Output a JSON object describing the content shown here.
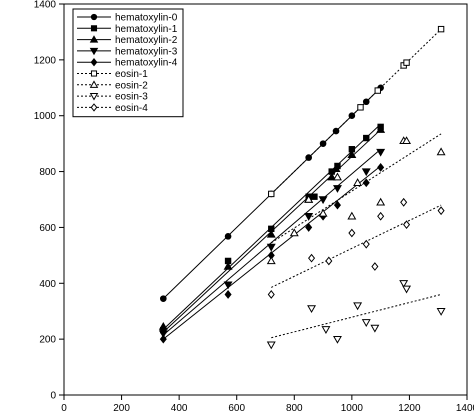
{
  "chart_data": {
    "type": "scatter",
    "title": "",
    "xlabel": "",
    "ylabel": "",
    "xlim": [
      0,
      1400
    ],
    "ylim": [
      0,
      1400
    ],
    "x_ticks": [
      "0",
      "200",
      "400",
      "600",
      "800",
      "1000",
      "1200",
      "1400"
    ],
    "y_ticks": [
      "0",
      "200",
      "400",
      "600",
      "800",
      "1000",
      "1200",
      "1400"
    ],
    "grid": false,
    "legend_position": "top-left",
    "series": [
      {
        "name": "hematoxylin-0",
        "marker": "circle",
        "filled": true,
        "line": "solid",
        "fit": [
          [
            345,
            345
          ],
          [
            1100,
            1100
          ]
        ],
        "points": [
          [
            345,
            345
          ],
          [
            570,
            568
          ],
          [
            720,
            720
          ],
          [
            850,
            850
          ],
          [
            900,
            900
          ],
          [
            945,
            945
          ],
          [
            1000,
            1000
          ],
          [
            1050,
            1050
          ],
          [
            1100,
            1100
          ]
        ]
      },
      {
        "name": "hematoxylin-1",
        "marker": "square",
        "filled": true,
        "line": "solid",
        "fit": [
          [
            345,
            235
          ],
          [
            1100,
            970
          ]
        ],
        "points": [
          [
            345,
            232
          ],
          [
            570,
            480
          ],
          [
            720,
            595
          ],
          [
            850,
            710
          ],
          [
            870,
            710
          ],
          [
            930,
            800
          ],
          [
            950,
            820
          ],
          [
            1000,
            880
          ],
          [
            1050,
            920
          ],
          [
            1100,
            960
          ]
        ]
      },
      {
        "name": "hematoxylin-2",
        "marker": "triangle-up",
        "filled": true,
        "line": "solid",
        "fit": [
          [
            345,
            225
          ],
          [
            1100,
            950
          ]
        ],
        "points": [
          [
            345,
            245
          ],
          [
            570,
            460
          ],
          [
            720,
            575
          ],
          [
            850,
            700
          ],
          [
            930,
            780
          ],
          [
            945,
            810
          ],
          [
            1000,
            860
          ],
          [
            1100,
            950
          ]
        ]
      },
      {
        "name": "hematoxylin-3",
        "marker": "triangle-down",
        "filled": true,
        "line": "solid",
        "fit": [
          [
            345,
            215
          ],
          [
            1100,
            880
          ]
        ],
        "points": [
          [
            345,
            220
          ],
          [
            570,
            395
          ],
          [
            720,
            530
          ],
          [
            850,
            640
          ],
          [
            900,
            700
          ],
          [
            950,
            740
          ],
          [
            1050,
            800
          ],
          [
            1100,
            870
          ]
        ]
      },
      {
        "name": "hematoxylin-4",
        "marker": "diamond",
        "filled": true,
        "line": "solid",
        "fit": [
          [
            345,
            200
          ],
          [
            1100,
            820
          ]
        ],
        "points": [
          [
            345,
            200
          ],
          [
            570,
            360
          ],
          [
            720,
            500
          ],
          [
            850,
            600
          ],
          [
            900,
            640
          ],
          [
            950,
            680
          ],
          [
            1050,
            760
          ],
          [
            1100,
            815
          ]
        ]
      },
      {
        "name": "eosin-1",
        "marker": "square",
        "filled": false,
        "line": "dotted",
        "fit": [
          [
            720,
            720
          ],
          [
            1310,
            1310
          ]
        ],
        "points": [
          [
            720,
            720
          ],
          [
            1030,
            1030
          ],
          [
            1090,
            1090
          ],
          [
            1180,
            1180
          ],
          [
            1190,
            1190
          ],
          [
            1310,
            1310
          ]
        ]
      },
      {
        "name": "eosin-2",
        "marker": "triangle-up",
        "filled": false,
        "line": "dotted",
        "fit": [
          [
            720,
            545
          ],
          [
            1310,
            935
          ]
        ],
        "points": [
          [
            720,
            480
          ],
          [
            800,
            580
          ],
          [
            850,
            700
          ],
          [
            900,
            650
          ],
          [
            950,
            780
          ],
          [
            1000,
            640
          ],
          [
            1020,
            760
          ],
          [
            1100,
            690
          ],
          [
            1180,
            910
          ],
          [
            1190,
            910
          ],
          [
            1310,
            870
          ]
        ]
      },
      {
        "name": "eosin-3",
        "marker": "triangle-down",
        "filled": false,
        "line": "dotted",
        "fit": [
          [
            720,
            205
          ],
          [
            1310,
            360
          ]
        ],
        "points": [
          [
            720,
            180
          ],
          [
            860,
            310
          ],
          [
            910,
            235
          ],
          [
            950,
            200
          ],
          [
            1020,
            320
          ],
          [
            1050,
            260
          ],
          [
            1080,
            240
          ],
          [
            1180,
            400
          ],
          [
            1190,
            380
          ],
          [
            1310,
            300
          ]
        ]
      },
      {
        "name": "eosin-4",
        "marker": "diamond",
        "filled": false,
        "line": "dotted",
        "fit": [
          [
            720,
            385
          ],
          [
            1310,
            680
          ]
        ],
        "points": [
          [
            720,
            360
          ],
          [
            860,
            490
          ],
          [
            920,
            480
          ],
          [
            1000,
            580
          ],
          [
            1050,
            540
          ],
          [
            1080,
            460
          ],
          [
            1100,
            640
          ],
          [
            1180,
            690
          ],
          [
            1190,
            610
          ],
          [
            1310,
            660
          ]
        ]
      }
    ]
  }
}
